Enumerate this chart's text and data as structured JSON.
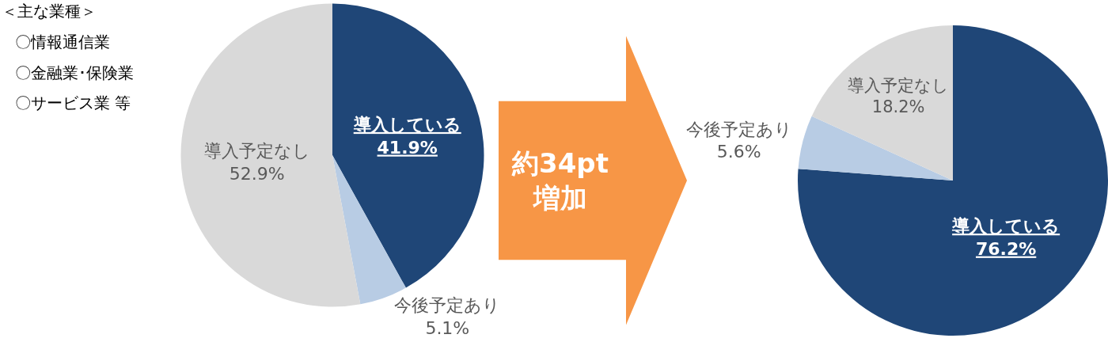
{
  "chart_data": [
    {
      "type": "pie",
      "categories": [
        "導入している",
        "今後予定あり",
        "導入予定なし"
      ],
      "values": [
        41.9,
        5.1,
        52.9
      ],
      "value_labels": [
        "41.9%",
        "5.1%",
        "52.9%"
      ],
      "colors": [
        "#1f4677",
        "#b8cce4",
        "#d9d9d9"
      ],
      "annotations": [
        "＜主な業種＞",
        "〇情報通信業",
        "〇金融業･保険業",
        "〇サービス業 等",
        "約34pt",
        "増加"
      ]
    },
    {
      "type": "pie",
      "categories": [
        "導入している",
        "今後予定あり",
        "導入予定なし"
      ],
      "values": [
        76.2,
        5.6,
        18.2
      ],
      "value_labels": [
        "76.2%",
        "5.6%",
        "18.2%"
      ],
      "colors": [
        "#1f4677",
        "#b8cce4",
        "#d9d9d9"
      ]
    }
  ]
}
